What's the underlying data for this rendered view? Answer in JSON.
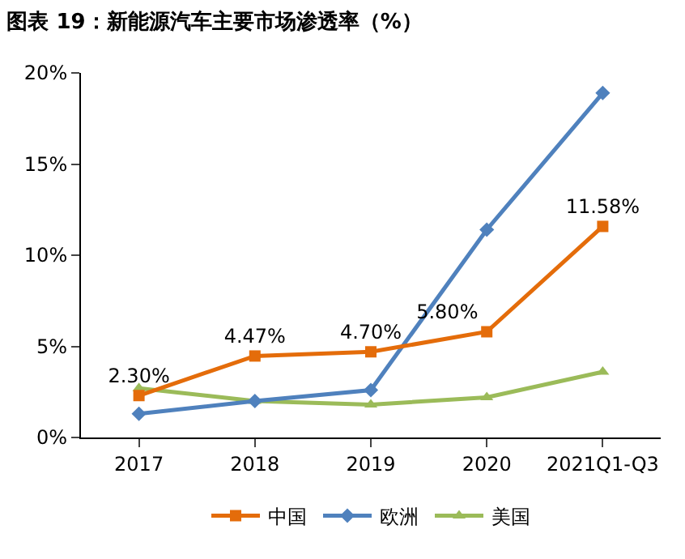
{
  "chart_data": {
    "type": "line",
    "title": "图表 19：新能源汽车主要市场渗透率（%）",
    "categories": [
      "2017",
      "2018",
      "2019",
      "2020",
      "2021Q1-Q3"
    ],
    "series": [
      {
        "name": "中国",
        "color": "#e46c0a",
        "marker": "square",
        "values": [
          2.3,
          4.47,
          4.7,
          5.8,
          11.58
        ],
        "value_labels": [
          "2.30%",
          "4.47%",
          "4.70%",
          "5.80%",
          "11.58%"
        ]
      },
      {
        "name": "欧洲",
        "color": "#4f81bd",
        "marker": "diamond",
        "values": [
          1.3,
          2.0,
          2.6,
          11.4,
          18.9
        ]
      },
      {
        "name": "美国",
        "color": "#9bbb59",
        "marker": "triangle",
        "values": [
          2.7,
          2.0,
          1.8,
          2.2,
          3.6
        ]
      }
    ],
    "ylim": [
      0,
      20
    ],
    "yticks": [
      {
        "value": 0,
        "label": "0%"
      },
      {
        "value": 5,
        "label": "5%"
      },
      {
        "value": 10,
        "label": "10%"
      },
      {
        "value": 15,
        "label": "15%"
      },
      {
        "value": 20,
        "label": "20%"
      }
    ],
    "legend": "bottom"
  }
}
